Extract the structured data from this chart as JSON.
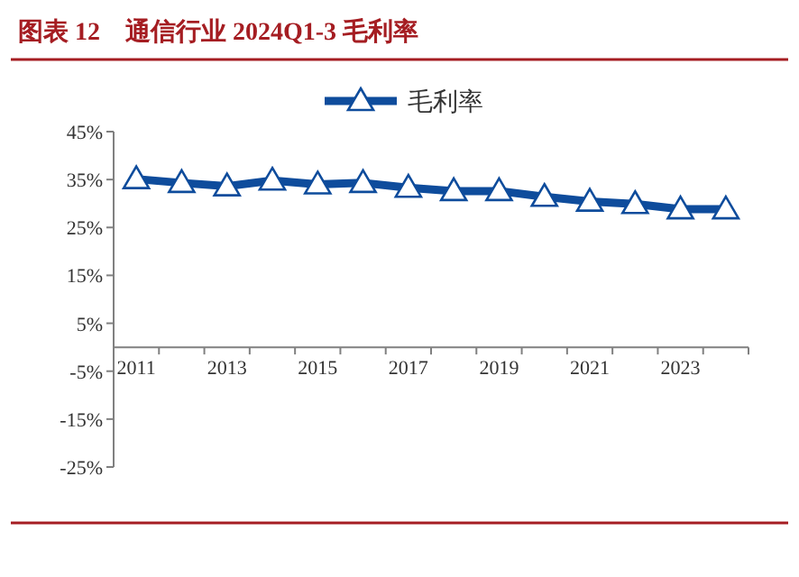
{
  "chart_data": {
    "type": "line",
    "title": "图表 12　通信行业 2024Q1-3 毛利率",
    "categories": [
      "2011",
      null,
      "2013",
      null,
      "2015",
      null,
      "2017",
      null,
      "2019",
      null,
      "2021",
      null,
      "2023",
      null
    ],
    "series": [
      {
        "name": "毛利率",
        "color": "#0e4c9c",
        "values": [
          35.1,
          34.3,
          33.6,
          34.8,
          34.0,
          34.3,
          33.3,
          32.6,
          32.6,
          31.4,
          30.4,
          29.9,
          28.8,
          28.8
        ]
      }
    ],
    "ylim": [
      -25,
      45
    ],
    "yticks": [
      {
        "value": -25,
        "label": "-25%"
      },
      {
        "value": -15,
        "label": "-15%"
      },
      {
        "value": -5,
        "label": "-5%"
      },
      {
        "value": 5,
        "label": "5%"
      },
      {
        "value": 15,
        "label": "15%"
      },
      {
        "value": 25,
        "label": "25%"
      },
      {
        "value": 35,
        "label": "35%"
      },
      {
        "value": 45,
        "label": "45%"
      }
    ],
    "marker": "triangle",
    "legend": "top",
    "grid": false
  }
}
